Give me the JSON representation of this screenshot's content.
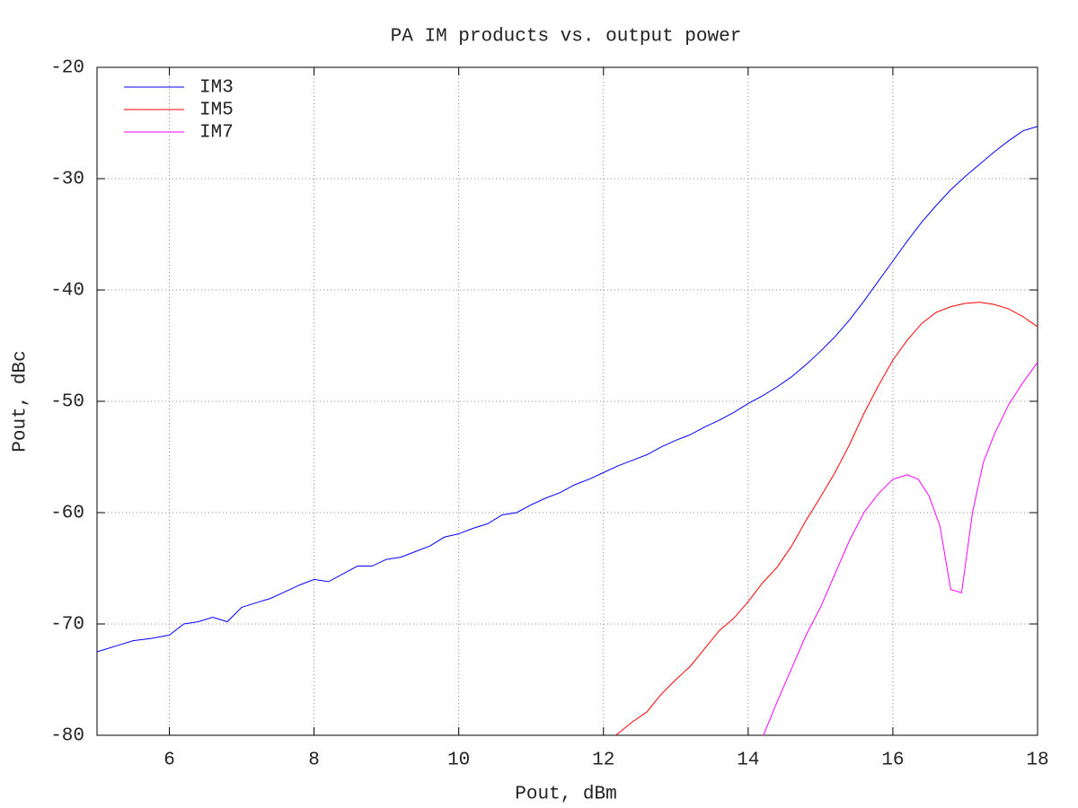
{
  "chart_data": {
    "type": "line",
    "title": "PA IM products vs. output power",
    "x_label": "Pout, dBm",
    "y_label": "Pout, dBc",
    "xlim": [
      5,
      18
    ],
    "xticks": [
      6,
      8,
      10,
      12,
      14,
      16,
      18
    ],
    "ylim": [
      -80,
      -20
    ],
    "yticks": [
      -80,
      -70,
      -60,
      -50,
      -40,
      -30,
      -20
    ],
    "grid": true,
    "legend": "top-left",
    "series": [
      {
        "name": "IM3",
        "color": "#0000ff",
        "x": [
          5,
          5.25,
          5.5,
          5.75,
          6,
          6.2,
          6.4,
          6.6,
          6.8,
          7,
          7.2,
          7.4,
          7.6,
          7.8,
          8,
          8.2,
          8.4,
          8.6,
          8.8,
          9,
          9.2,
          9.4,
          9.6,
          9.8,
          10,
          10.2,
          10.4,
          10.6,
          10.8,
          11,
          11.2,
          11.4,
          11.6,
          11.8,
          12,
          12.2,
          12.4,
          12.6,
          12.8,
          13,
          13.2,
          13.4,
          13.6,
          13.8,
          14,
          14.2,
          14.4,
          14.6,
          14.8,
          15,
          15.2,
          15.4,
          15.6,
          15.8,
          16,
          16.2,
          16.4,
          16.6,
          16.8,
          17,
          17.2,
          17.4,
          17.6,
          17.8,
          18
        ],
        "values": [
          -72.5,
          -72.0,
          -71.5,
          -71.3,
          -71.0,
          -70.0,
          -69.8,
          -69.4,
          -69.8,
          -68.5,
          -68.1,
          -67.7,
          -67.1,
          -66.5,
          -66.0,
          -66.2,
          -65.5,
          -64.8,
          -64.8,
          -64.2,
          -64.0,
          -63.5,
          -63.0,
          -62.2,
          -61.9,
          -61.4,
          -61.0,
          -60.2,
          -60.0,
          -59.3,
          -58.7,
          -58.2,
          -57.5,
          -57.0,
          -56.4,
          -55.8,
          -55.3,
          -54.8,
          -54.1,
          -53.5,
          -53.0,
          -52.3,
          -51.7,
          -51.0,
          -50.2,
          -49.5,
          -48.7,
          -47.8,
          -46.7,
          -45.5,
          -44.2,
          -42.7,
          -41.0,
          -39.2,
          -37.4,
          -35.6,
          -33.9,
          -32.4,
          -31.0,
          -29.8,
          -28.7,
          -27.6,
          -26.6,
          -25.7,
          -25.3
        ]
      },
      {
        "name": "IM5",
        "color": "#ff0000",
        "x": [
          12.17,
          12.4,
          12.6,
          12.8,
          13,
          13.2,
          13.4,
          13.6,
          13.8,
          14,
          14.2,
          14.4,
          14.6,
          14.8,
          15,
          15.2,
          15.4,
          15.6,
          15.8,
          16,
          16.2,
          16.4,
          16.6,
          16.8,
          17,
          17.2,
          17.4,
          17.6,
          17.8,
          18
        ],
        "values": [
          -80,
          -78.8,
          -77.9,
          -76.3,
          -75.0,
          -73.8,
          -72.2,
          -70.6,
          -69.5,
          -68.0,
          -66.3,
          -64.9,
          -63.0,
          -60.7,
          -58.6,
          -56.4,
          -53.9,
          -51.1,
          -48.6,
          -46.3,
          -44.5,
          -43.0,
          -42.0,
          -41.5,
          -41.2,
          -41.1,
          -41.3,
          -41.7,
          -42.4,
          -43.3
        ]
      },
      {
        "name": "IM7",
        "color": "#ff00ff",
        "x": [
          14.21,
          14.4,
          14.6,
          14.8,
          15,
          15.2,
          15.4,
          15.6,
          15.8,
          16,
          16.2,
          16.35,
          16.5,
          16.65,
          16.8,
          16.95,
          17.1,
          17.25,
          17.4,
          17.6,
          17.8,
          18
        ],
        "values": [
          -80,
          -77.0,
          -74.0,
          -71.0,
          -68.5,
          -65.5,
          -62.5,
          -60.0,
          -58.3,
          -57.0,
          -56.6,
          -57.0,
          -58.5,
          -61.2,
          -66.9,
          -67.2,
          -60.0,
          -55.5,
          -53.0,
          -50.3,
          -48.3,
          -46.5
        ]
      }
    ]
  }
}
